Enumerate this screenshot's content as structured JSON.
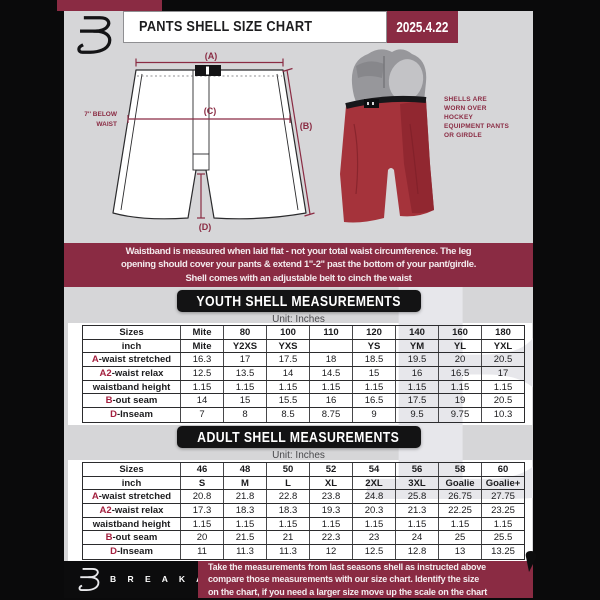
{
  "colors": {
    "maroon": "#8A2B43",
    "doc_background": "#D6D6D8",
    "banner_black": "#131314",
    "shell_red": "#A5333B",
    "label_red": "#A31F3E"
  },
  "header": {
    "title": "PANTS SHELL SIZE CHART",
    "date": "2025.4.22"
  },
  "diagram": {
    "label_a": "(A)",
    "label_b": "(B)",
    "label_c": "(C)",
    "label_d": "(D)",
    "note_line1": "7'' BELOW",
    "note_line2": "WAIST",
    "photo_caption": "SHELLS ARE WORN OVER HOCKEY EQUIPMENT PANTS OR GIRDLE"
  },
  "info_banner": {
    "lines": [
      "Waistband is measured when laid flat - not your total waist circumference. The leg",
      "opening should cover your pants & extend 1''-2'' past the bottom of your pant/girdle.",
      "Shell comes with an adjustable belt to cinch the waist"
    ]
  },
  "youth": {
    "title": "YOUTH SHELL MEASUREMENTS",
    "unit": "Unit: Inches"
  },
  "adult": {
    "title": "ADULT SHELL MEASUREMENTS",
    "unit": "Unit: Inches"
  },
  "tables": {
    "youth": {
      "rows": [
        {
          "prefix": "",
          "label": "Sizes",
          "bold": true,
          "values": [
            "Mite",
            "80",
            "100",
            "110",
            "120",
            "140",
            "160",
            "180"
          ]
        },
        {
          "prefix": "",
          "label": "inch",
          "bold": true,
          "values": [
            "Mite",
            "Y2XS",
            "YXS",
            "",
            "YS",
            "YM",
            "YL",
            "YXL"
          ]
        },
        {
          "prefix": "A",
          "label": "-waist stretched",
          "bold": false,
          "values": [
            "16.3",
            "17",
            "17.5",
            "18",
            "18.5",
            "19.5",
            "20",
            "20.5"
          ]
        },
        {
          "prefix": "A2",
          "label": "-waist relax",
          "bold": false,
          "values": [
            "12.5",
            "13.5",
            "14",
            "14.5",
            "15",
            "16",
            "16.5",
            "17"
          ]
        },
        {
          "prefix": "",
          "label": "waistband height",
          "bold": false,
          "values": [
            "1.15",
            "1.15",
            "1.15",
            "1.15",
            "1.15",
            "1.15",
            "1.15",
            "1.15"
          ]
        },
        {
          "prefix": "B",
          "label": "-out seam",
          "bold": false,
          "values": [
            "14",
            "15",
            "15.5",
            "16",
            "16.5",
            "17.5",
            "19",
            "20.5"
          ]
        },
        {
          "prefix": "D",
          "label": "-Inseam",
          "bold": false,
          "values": [
            "7",
            "8",
            "8.5",
            "8.75",
            "9",
            "9.5",
            "9.75",
            "10.3"
          ]
        }
      ]
    },
    "adult": {
      "rows": [
        {
          "prefix": "",
          "label": "Sizes",
          "bold": true,
          "values": [
            "46",
            "48",
            "50",
            "52",
            "54",
            "56",
            "58",
            "60"
          ]
        },
        {
          "prefix": "",
          "label": "inch",
          "bold": true,
          "values": [
            "S",
            "M",
            "L",
            "XL",
            "2XL",
            "3XL",
            "Goalie",
            "Goalie+"
          ]
        },
        {
          "prefix": "A",
          "label": "-waist stretched",
          "bold": false,
          "values": [
            "20.8",
            "21.8",
            "22.8",
            "23.8",
            "24.8",
            "25.8",
            "26.75",
            "27.75"
          ]
        },
        {
          "prefix": "A2",
          "label": "-waist relax",
          "bold": false,
          "values": [
            "17.3",
            "18.3",
            "18.3",
            "19.3",
            "20.3",
            "21.3",
            "22.25",
            "23.25"
          ]
        },
        {
          "prefix": "",
          "label": "waistband height",
          "bold": false,
          "values": [
            "1.15",
            "1.15",
            "1.15",
            "1.15",
            "1.15",
            "1.15",
            "1.15",
            "1.15"
          ]
        },
        {
          "prefix": "B",
          "label": "-out seam",
          "bold": false,
          "values": [
            "20",
            "21.5",
            "21",
            "22.3",
            "23",
            "24",
            "25",
            "25.5"
          ]
        },
        {
          "prefix": "D",
          "label": "-Inseam",
          "bold": false,
          "values": [
            "11",
            "11.3",
            "11.3",
            "12",
            "12.5",
            "12.8",
            "13",
            "13.25"
          ]
        }
      ]
    }
  },
  "footer": {
    "brand": "B R E A K A W A Y",
    "lines": [
      "Take the measurements from last seasons shell as instructed above",
      "compare those measurements  with our size chart. Identify the size",
      "on the chart, if you need a larger size move up the scale on the chart"
    ]
  }
}
